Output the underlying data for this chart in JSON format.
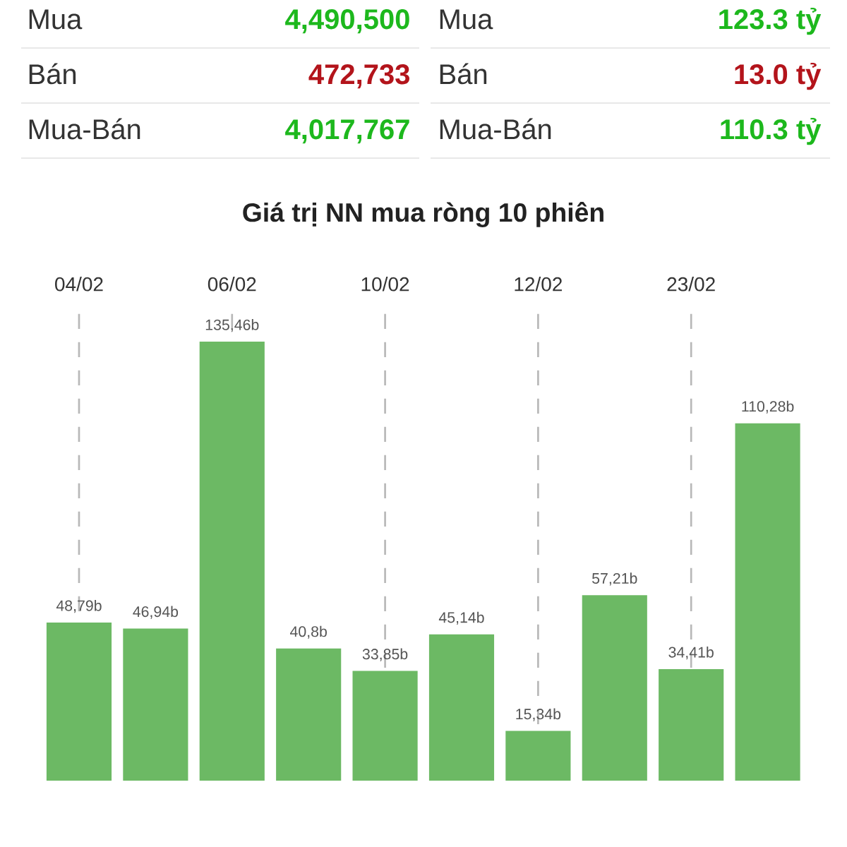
{
  "chart_data": [
    {
      "type": "other",
      "annotations": [
        "Mua",
        "4,490,500",
        "Mua",
        "123.3 tỷ",
        "Bán",
        "472,733",
        "Bán",
        "13.0 tỷ",
        "Mua-Bán",
        "4,017,767",
        "Mua-Bán",
        "110.3 tỷ"
      ]
    },
    {
      "type": "bar",
      "title": "Giá trị NN mua ròng 10 phiên",
      "categories": [
        "04/02",
        null,
        "06/02",
        null,
        "10/02",
        null,
        "12/02",
        null,
        "23/02",
        null
      ],
      "values": [
        48.79,
        46.94,
        135.46,
        40.8,
        33.85,
        45.14,
        15.34,
        57.21,
        34.41,
        110.28
      ],
      "value_labels": [
        "48,79b",
        "46,94b",
        "135,46b",
        "40,8b",
        "33,85b",
        "45,14b",
        "15,34b",
        "57,21b",
        "34,41b",
        "110,28b"
      ],
      "color": "#6cb964",
      "grid": "x",
      "tick_labels": "x"
    }
  ]
}
